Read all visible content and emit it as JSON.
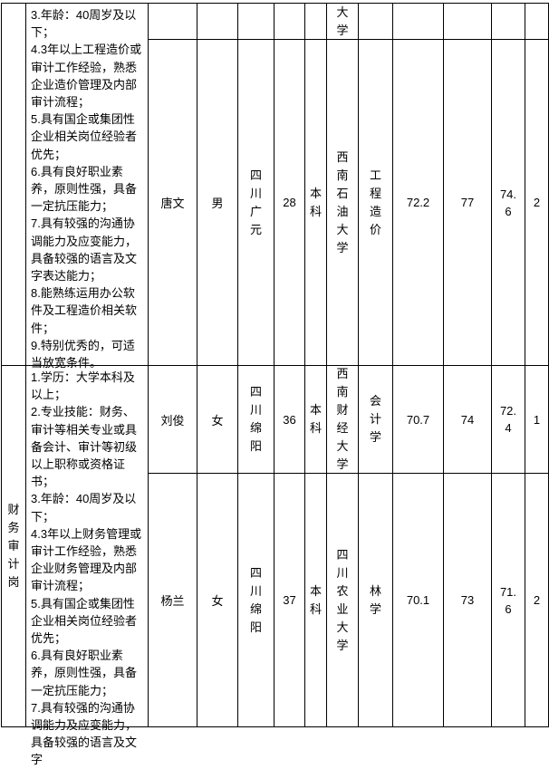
{
  "sections": [
    {
      "post": "",
      "requirements": "3.年龄：40周岁及以下；\n4.3年以上工程造价或审计工作经验，熟悉企业造价管理及内部审计流程；\n5.具有国企或集团性企业相关岗位经验者优先；\n6.具有良好职业素养，原则性强，具备一定抗压能力；\n7.具有较强的沟通协调能力及应变能力，具备较强的语言及文字表达能力；\n8.能熟练运用办公软件及工程造价相关软件；\n9.特别优秀的，可适当放宽条件。",
      "continuation": {
        "school": "大学"
      },
      "candidates": [
        {
          "name": "唐文",
          "gender": "男",
          "origin": "四川广元",
          "age": "28",
          "education": "本科",
          "school": "西南石油大学",
          "major": "工程造价",
          "written": "72.2",
          "interview": "77",
          "total": "74.6",
          "rank": "2"
        }
      ]
    },
    {
      "post": "财务审计岗",
      "requirements": "1.学历：大学本科及以上；\n2.专业技能：财务、审计等相关专业或具备会计、审计等初级以上职称或资格证书；\n3.年龄：40周岁及以下；\n4.3年以上财务管理或审计工作经验，熟悉企业财务管理及内部审计流程；\n5.具有国企或集团性企业相关岗位经验者优先；\n6.具有良好职业素养，原则性强，具备一定抗压能力；\n7.具有较强的沟通协调能力及应变能力，具备较强的语言及文字",
      "candidates": [
        {
          "name": "刘俊",
          "gender": "女",
          "origin": "四川绵阳",
          "age": "36",
          "education": "本科",
          "school": "西南财经大学",
          "major": "会计学",
          "written": "70.7",
          "interview": "74",
          "total": "72.4",
          "rank": "1"
        },
        {
          "name": "杨兰",
          "gender": "女",
          "origin": "四川绵阳",
          "age": "37",
          "education": "本科",
          "school": "四川农业大学",
          "major": "林学",
          "written": "70.1",
          "interview": "73",
          "total": "71.6",
          "rank": "2"
        }
      ]
    }
  ]
}
